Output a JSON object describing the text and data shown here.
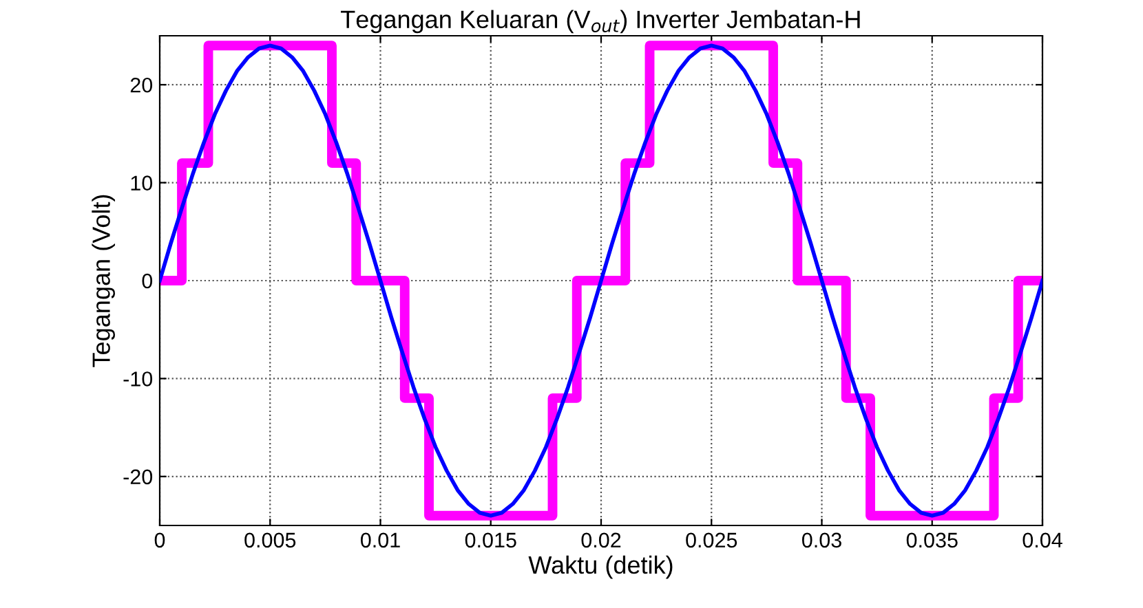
{
  "chart_data": {
    "type": "line",
    "title": "Tegangan Keluaran (V$_{out}$) Inverter Jembatan-H",
    "xlabel": "Waktu (detik)",
    "ylabel": "Tegangan (Volt)",
    "xlim": [
      0,
      0.04
    ],
    "ylim": [
      -25,
      25
    ],
    "xticks": [
      0,
      0.005,
      0.01,
      0.015,
      0.02,
      0.025,
      0.03,
      0.035,
      0.04
    ],
    "yticks": [
      -20,
      -10,
      0,
      10,
      20
    ],
    "grid": true,
    "legend": false,
    "series": [
      {
        "type": "step",
        "color": "#ff00ff",
        "x": [
          0,
          0.001,
          0.0022,
          0.0078,
          0.0089,
          0.0111,
          0.0122,
          0.0178,
          0.0189,
          0.0211,
          0.0222,
          0.0278,
          0.0289,
          0.0311,
          0.0322,
          0.0378,
          0.0389,
          0.04
        ],
        "values": [
          0,
          12,
          24,
          12,
          0,
          -12,
          -24,
          -12,
          0,
          12,
          24,
          12,
          0,
          -12,
          -24,
          -12,
          0,
          0
        ]
      },
      {
        "color": "#0000ff",
        "x": [
          0,
          0.0005,
          0.001,
          0.0015,
          0.002,
          0.0025,
          0.003,
          0.0035,
          0.004,
          0.0045,
          0.005,
          0.0055,
          0.006,
          0.0065,
          0.007,
          0.0075,
          0.008,
          0.0085,
          0.009,
          0.0095,
          0.01,
          0.0105,
          0.011,
          0.0115,
          0.012,
          0.0125,
          0.013,
          0.0135,
          0.014,
          0.0145,
          0.015,
          0.0155,
          0.016,
          0.0165,
          0.017,
          0.0175,
          0.018,
          0.0185,
          0.019,
          0.0195,
          0.02,
          0.0205,
          0.021,
          0.0215,
          0.022,
          0.0225,
          0.023,
          0.0235,
          0.024,
          0.0245,
          0.025,
          0.0255,
          0.026,
          0.0265,
          0.027,
          0.0275,
          0.028,
          0.0285,
          0.029,
          0.0295,
          0.03,
          0.0305,
          0.031,
          0.0315,
          0.032,
          0.0325,
          0.033,
          0.0335,
          0.034,
          0.0345,
          0.035,
          0.0355,
          0.036,
          0.0365,
          0.037,
          0.0375,
          0.038,
          0.0385,
          0.039,
          0.0395,
          0.04
        ],
        "values": [
          0,
          3.8,
          7.4,
          10.9,
          14.1,
          17.0,
          19.4,
          21.4,
          22.8,
          23.7,
          24.0,
          23.7,
          22.8,
          21.4,
          19.4,
          17.0,
          14.1,
          10.9,
          7.4,
          3.8,
          0,
          -3.8,
          -7.4,
          -10.9,
          -14.1,
          -17.0,
          -19.4,
          -21.4,
          -22.8,
          -23.7,
          -24.0,
          -23.7,
          -22.8,
          -21.4,
          -19.4,
          -17.0,
          -14.1,
          -10.9,
          -7.4,
          -3.8,
          0,
          3.8,
          7.4,
          10.9,
          14.1,
          17.0,
          19.4,
          21.4,
          22.8,
          23.7,
          24.0,
          23.7,
          22.8,
          21.4,
          19.4,
          17.0,
          14.1,
          10.9,
          7.4,
          3.8,
          0,
          -3.8,
          -7.4,
          -10.9,
          -14.1,
          -17.0,
          -19.4,
          -21.4,
          -22.8,
          -23.7,
          -24.0,
          -23.7,
          -22.8,
          -21.4,
          -19.4,
          -17.0,
          -14.1,
          -10.9,
          -7.4,
          -3.8,
          0
        ]
      }
    ]
  }
}
